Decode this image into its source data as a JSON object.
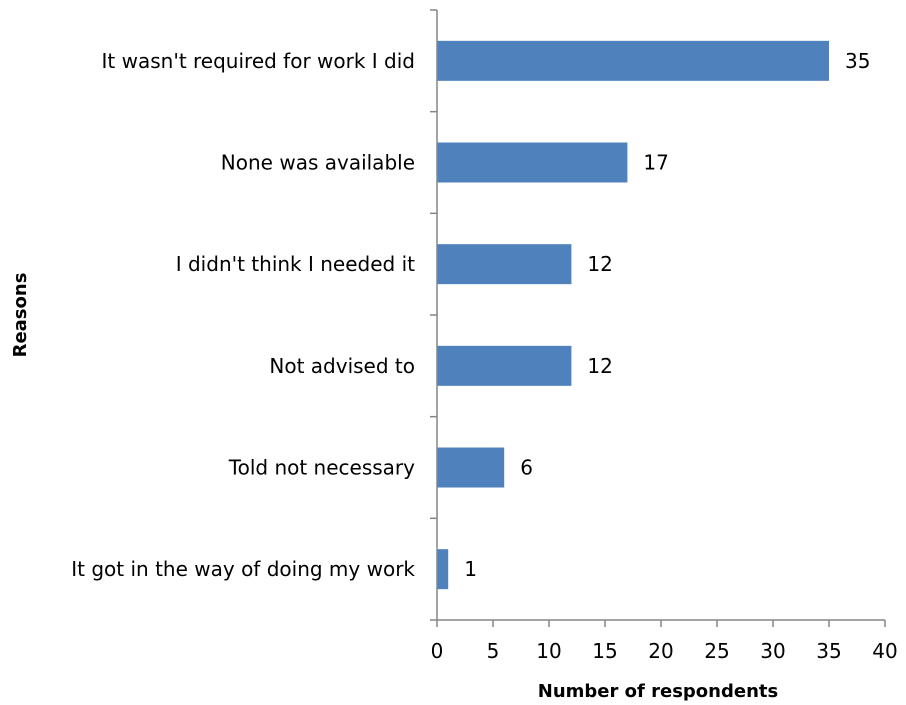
{
  "chart_data": {
    "type": "bar",
    "orientation": "horizontal",
    "categories": [
      "It wasn't required for work I did",
      "None was available",
      "I didn't think I needed it",
      "Not advised to",
      "Told not necessary",
      "It got in the way of doing my work"
    ],
    "values": [
      35,
      17,
      12,
      12,
      6,
      1
    ],
    "xlabel": "Number of respondents",
    "ylabel": "Reasons",
    "xlim": [
      0,
      40
    ],
    "xticks": [
      "0",
      "5",
      "10",
      "15",
      "20",
      "25",
      "30",
      "35",
      "40"
    ],
    "grid": false,
    "legend": "none",
    "bar_color": "#4f81bd",
    "data_labels": [
      "35",
      "17",
      "12",
      "12",
      "6",
      "1"
    ]
  }
}
